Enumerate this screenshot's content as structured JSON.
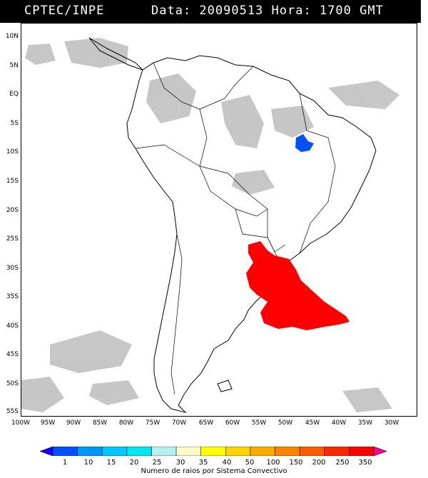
{
  "header": {
    "source": "CPTEC/INPE",
    "datetime": "Data: 20090513 Hora: 1700 GMT"
  },
  "lat_labels": [
    "10N",
    "5N",
    "EQ",
    "5S",
    "10S",
    "15S",
    "20S",
    "25S",
    "30S",
    "35S",
    "40S",
    "45S",
    "50S",
    "55S"
  ],
  "lon_labels": [
    "100W",
    "95W",
    "90W",
    "85W",
    "80W",
    "75W",
    "70W",
    "65W",
    "60W",
    "55W",
    "50W",
    "45W",
    "40W",
    "35W",
    "30W"
  ],
  "legend": {
    "values": [
      "1",
      "10",
      "15",
      "20",
      "25",
      "30",
      "35",
      "40",
      "50",
      "100",
      "150",
      "200",
      "250",
      "350"
    ],
    "colors": [
      "#1400ff",
      "#0050ff",
      "#0096ff",
      "#00c8ff",
      "#00e6f0",
      "#b4f0f0",
      "#fffac8",
      "#ffff00",
      "#ffd200",
      "#ffaa00",
      "#ff8200",
      "#ff5a00",
      "#ff2800",
      "#ff0000",
      "#ff0096"
    ],
    "title": "Numero de raios por Sistema Convectivo"
  },
  "map": {
    "systems": [
      {
        "color": "#ff0000",
        "region": "southern Brazil, Uruguay, Argentina and adjacent Atlantic"
      },
      {
        "color": "#0050ff",
        "region": "northeast Brazil"
      }
    ],
    "cloud_color": "#bdbdbd"
  }
}
